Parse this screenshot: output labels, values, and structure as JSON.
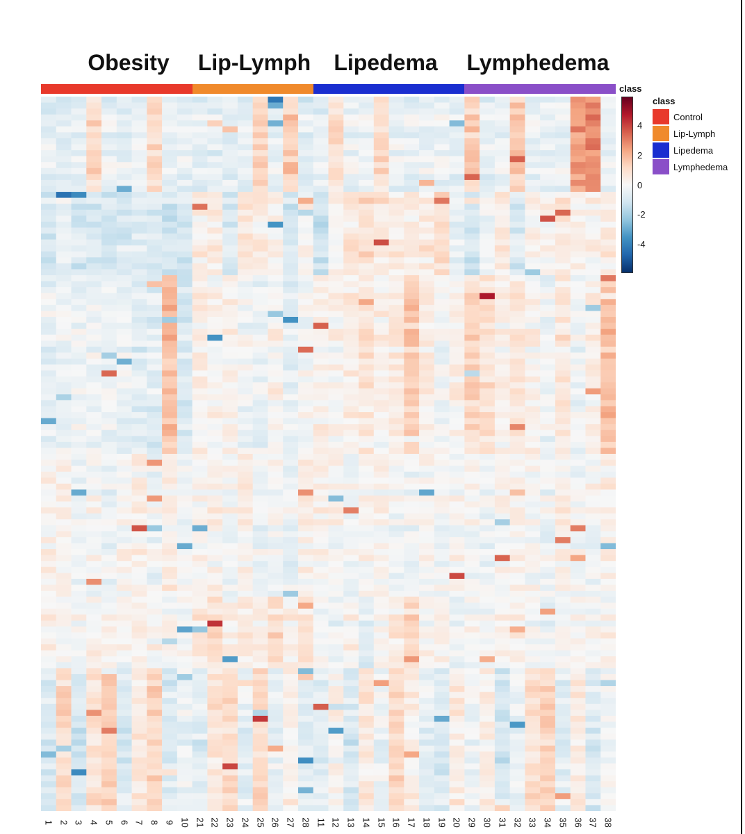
{
  "chart_data": {
    "type": "heatmap",
    "title": "",
    "group_titles": [
      "Obesity",
      "Lip-Lymph",
      "Lipedema",
      "Lymphedema"
    ],
    "columns": [
      "1",
      "2",
      "3",
      "4",
      "5",
      "6",
      "7",
      "8",
      "9",
      "10",
      "21",
      "22",
      "23",
      "24",
      "25",
      "26",
      "27",
      "28",
      "11",
      "12",
      "13",
      "14",
      "15",
      "16",
      "17",
      "18",
      "19",
      "20",
      "29",
      "30",
      "31",
      "32",
      "33",
      "34",
      "35",
      "36",
      "37",
      "38"
    ],
    "column_class": [
      "Control",
      "Control",
      "Control",
      "Control",
      "Control",
      "Control",
      "Control",
      "Control",
      "Control",
      "Control",
      "Lip-Lymph",
      "Lip-Lymph",
      "Lip-Lymph",
      "Lip-Lymph",
      "Lip-Lymph",
      "Lip-Lymph",
      "Lip-Lymph",
      "Lip-Lymph",
      "Lipedema",
      "Lipedema",
      "Lipedema",
      "Lipedema",
      "Lipedema",
      "Lipedema",
      "Lipedema",
      "Lipedema",
      "Lipedema",
      "Lipedema",
      "Lymphedema",
      "Lymphedema",
      "Lymphedema",
      "Lymphedema",
      "Lymphedema",
      "Lymphedema",
      "Lymphedema",
      "Lymphedema",
      "Lymphedema",
      "Lymphedema"
    ],
    "annotation_title": "class",
    "colorbar": {
      "title": "class",
      "ticks": [
        "4",
        "2",
        "0",
        "-2",
        "-4"
      ],
      "range": [
        -5.5,
        5.5
      ],
      "colors": [
        "#08306b",
        "#2166ac",
        "#4393c3",
        "#92c5de",
        "#d1e5f0",
        "#f7f7f7",
        "#fddbc7",
        "#f4a582",
        "#d6604d",
        "#b2182b",
        "#67001f"
      ]
    },
    "legend": {
      "title": "class",
      "items": [
        {
          "label": "Control",
          "color": "#e8392b"
        },
        {
          "label": "Lip-Lymph",
          "color": "#f08a2c"
        },
        {
          "label": "Lipedema",
          "color": "#1a2ed0"
        },
        {
          "label": "Lymphedema",
          "color": "#8a4fc8"
        }
      ]
    },
    "n_rows": 120,
    "row_blocks": [
      {
        "rows": [
          0,
          16
        ],
        "column_tendency": [
          -0.6,
          -0.6,
          -0.5,
          1.0,
          -0.4,
          -0.5,
          -0.5,
          1.1,
          -0.4,
          -0.5,
          -0.6,
          -0.6,
          -0.5,
          -0.5,
          1.3,
          -0.5,
          1.3,
          -0.6,
          -0.4,
          0.9,
          -0.4,
          -0.4,
          0.9,
          -0.4,
          -0.4,
          -0.4,
          -0.4,
          -0.4,
          1.3,
          -0.4,
          -0.4,
          1.6,
          -0.4,
          -0.4,
          -0.4,
          2.4,
          2.6,
          -0.4
        ]
      },
      {
        "rows": [
          16,
          30
        ],
        "column_tendency": [
          -0.9,
          -0.3,
          -0.8,
          -0.9,
          -0.8,
          -0.8,
          -0.6,
          -0.8,
          -0.9,
          -0.7,
          0.4,
          0.5,
          -0.8,
          0.8,
          0.5,
          0.3,
          -0.9,
          0.3,
          -1.0,
          0.2,
          0.6,
          0.9,
          0.7,
          0.6,
          0.5,
          0.6,
          1.1,
          -0.5,
          -0.9,
          -0.2,
          0.6,
          -0.7,
          0.3,
          0.4,
          0.7,
          0.4,
          0.3,
          0.5
        ]
      },
      {
        "rows": [
          30,
          60
        ],
        "column_tendency": [
          -0.4,
          -0.4,
          -0.3,
          -0.2,
          -0.3,
          -0.4,
          -0.6,
          -0.7,
          1.6,
          -0.9,
          0.3,
          0.1,
          0.2,
          -0.2,
          -0.3,
          0.2,
          -0.6,
          -0.1,
          0.3,
          0.1,
          0.4,
          0.6,
          0.2,
          0.5,
          1.4,
          0.3,
          -0.2,
          0.2,
          1.0,
          0.8,
          0.2,
          0.6,
          0.2,
          -0.3,
          0.6,
          -0.3,
          0.2,
          1.6
        ]
      },
      {
        "rows": [
          60,
          84
        ],
        "column_tendency": [
          0.3,
          0.2,
          -0.2,
          0.0,
          -0.3,
          0.1,
          0.3,
          -0.2,
          0.4,
          -0.3,
          0.1,
          0.2,
          0.0,
          0.3,
          -0.2,
          0.0,
          -0.3,
          0.3,
          0.2,
          0.1,
          -0.1,
          0.3,
          0.2,
          -0.1,
          -0.2,
          0.1,
          0.0,
          0.1,
          0.0,
          -0.2,
          0.1,
          0.2,
          0.1,
          -0.2,
          0.2,
          0.0,
          0.0,
          0.3
        ]
      },
      {
        "rows": [
          84,
          96
        ],
        "column_tendency": [
          0.2,
          0.1,
          0.0,
          0.2,
          0.1,
          0.0,
          0.3,
          0.1,
          0.2,
          0.0,
          0.6,
          1.0,
          0.2,
          0.5,
          0.4,
          0.9,
          0.3,
          0.8,
          0.0,
          -0.3,
          0.2,
          -0.6,
          0.1,
          0.5,
          1.0,
          0.1,
          0.2,
          -0.3,
          0.1,
          0.0,
          0.1,
          0.2,
          0.0,
          -0.5,
          0.1,
          0.1,
          0.2,
          0.1
        ]
      },
      {
        "rows": [
          96,
          120
        ],
        "column_tendency": [
          -0.8,
          1.0,
          -0.9,
          0.7,
          1.2,
          -0.7,
          0.6,
          1.1,
          -0.8,
          -0.4,
          -0.7,
          0.7,
          1.0,
          -0.5,
          1.0,
          -0.4,
          0.3,
          -0.7,
          -0.6,
          0.1,
          -0.9,
          0.5,
          -0.3,
          1.0,
          0.3,
          -0.5,
          -0.9,
          0.4,
          -0.2,
          0.3,
          -1.0,
          -0.4,
          0.8,
          1.2,
          -0.6,
          0.5,
          -0.8,
          -0.2
        ]
      }
    ]
  }
}
